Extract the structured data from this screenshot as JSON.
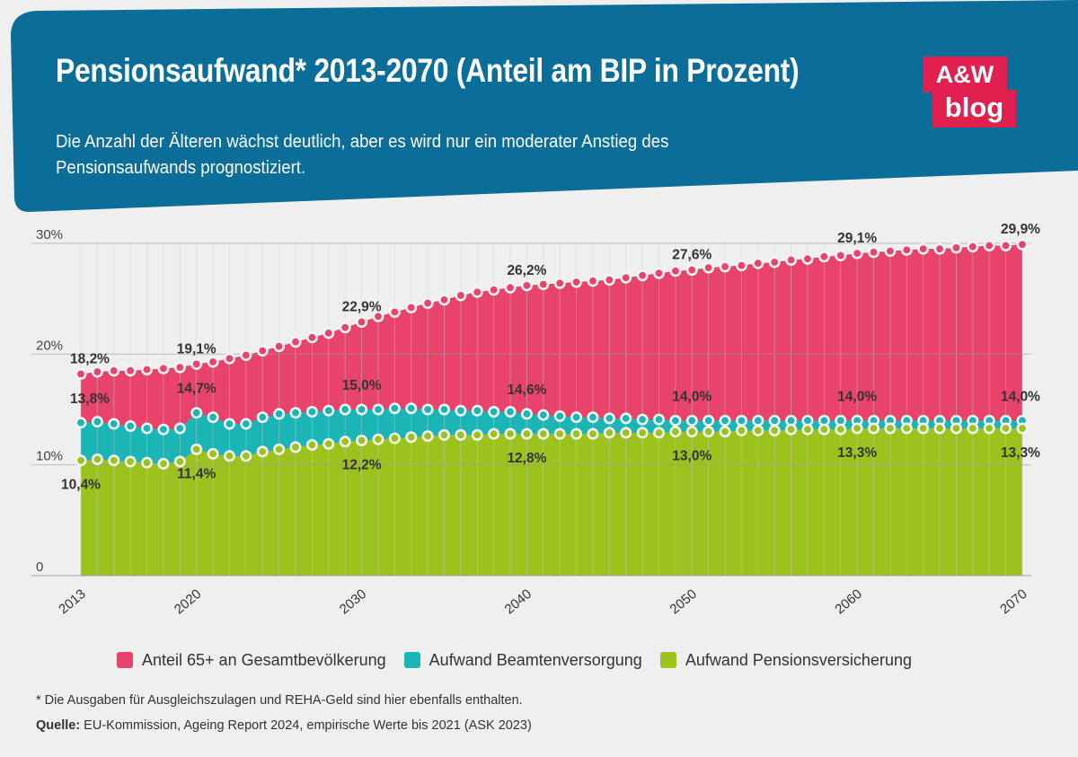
{
  "header": {
    "title": "Pensionsaufwand* 2013-2070 (Anteil am BIP in Prozent)",
    "subtitle": "Die Anzahl der Älteren wächst deutlich, aber es wird nur ein moderater Anstieg des Pensionsaufwands prognostiziert.",
    "logo_top": "A&W",
    "logo_bottom": "blog",
    "banner_color": "#0b6e99",
    "logo_color": "#e0204f"
  },
  "legend": {
    "items": [
      {
        "label": "Anteil 65+ an Gesamtbevölkerung",
        "color": "#e8436b"
      },
      {
        "label": "Aufwand Beamtenversorgung",
        "color": "#1bb5b5"
      },
      {
        "label": "Aufwand Pensionsversicherung",
        "color": "#9cc21e"
      }
    ]
  },
  "footer": {
    "footnote": "* Die Ausgaben für Ausgleichszulagen und REHA-Geld sind hier ebenfalls enthalten.",
    "source_label": "Quelle:",
    "source_text": " EU-Kommission, Ageing Report 2024, empirische Werte bis 2021 (ASK 2023)"
  },
  "chart_data": {
    "type": "area",
    "title": "Pensionsaufwand* 2013-2070 (Anteil am BIP in Prozent)",
    "xlabel": "",
    "ylabel": "",
    "x": [
      2013,
      2014,
      2015,
      2016,
      2017,
      2018,
      2019,
      2020,
      2021,
      2022,
      2023,
      2024,
      2025,
      2026,
      2027,
      2028,
      2029,
      2030,
      2031,
      2032,
      2033,
      2034,
      2035,
      2036,
      2037,
      2038,
      2039,
      2040,
      2041,
      2042,
      2043,
      2044,
      2045,
      2046,
      2047,
      2048,
      2049,
      2050,
      2051,
      2052,
      2053,
      2054,
      2055,
      2056,
      2057,
      2058,
      2059,
      2060,
      2061,
      2062,
      2063,
      2064,
      2065,
      2066,
      2067,
      2068,
      2069,
      2070
    ],
    "xlim": [
      2013,
      2070
    ],
    "ylim": [
      0,
      30
    ],
    "x_ticks": [
      2013,
      2020,
      2030,
      2040,
      2050,
      2060,
      2070
    ],
    "x_tick_labels": [
      "2013",
      "2020",
      "2030",
      "2040",
      "2050",
      "2060",
      "2070"
    ],
    "y_ticks": [
      0,
      10,
      20,
      30
    ],
    "y_tick_labels": [
      "0",
      "10%",
      "20%",
      "30%"
    ],
    "grid": "vertical lines every year, horizontal at 10/20/30",
    "series": [
      {
        "name": "Anteil 65+ an Gesamtbevölkerung",
        "color": "#e8436b",
        "values": [
          18.2,
          18.4,
          18.5,
          18.5,
          18.6,
          18.7,
          18.8,
          19.1,
          19.3,
          19.6,
          19.9,
          20.3,
          20.7,
          21.1,
          21.5,
          21.9,
          22.4,
          22.9,
          23.4,
          23.8,
          24.2,
          24.6,
          24.9,
          25.3,
          25.6,
          25.8,
          26.0,
          26.2,
          26.3,
          26.4,
          26.5,
          26.6,
          26.7,
          26.9,
          27.1,
          27.3,
          27.5,
          27.6,
          27.8,
          27.9,
          28.0,
          28.2,
          28.3,
          28.5,
          28.6,
          28.8,
          28.9,
          29.1,
          29.2,
          29.3,
          29.4,
          29.5,
          29.5,
          29.6,
          29.7,
          29.8,
          29.8,
          29.9
        ]
      },
      {
        "name": "Aufwand Beamtenversorgung",
        "color": "#1bb5b5",
        "values": [
          13.8,
          13.9,
          13.7,
          13.5,
          13.3,
          13.2,
          13.3,
          14.7,
          14.3,
          13.7,
          13.7,
          14.3,
          14.6,
          14.7,
          14.8,
          14.9,
          15.0,
          15.0,
          15.0,
          15.1,
          15.1,
          15.0,
          15.0,
          14.9,
          14.9,
          14.8,
          14.8,
          14.6,
          14.5,
          14.4,
          14.3,
          14.3,
          14.2,
          14.2,
          14.1,
          14.1,
          14.0,
          14.0,
          14.0,
          14.0,
          14.0,
          14.0,
          14.0,
          14.0,
          14.0,
          14.0,
          14.0,
          14.0,
          14.0,
          14.0,
          14.0,
          14.0,
          14.0,
          14.0,
          14.0,
          14.0,
          14.0,
          14.0
        ]
      },
      {
        "name": "Aufwand Pensionsversicherung",
        "color": "#9cc21e",
        "values": [
          10.4,
          10.5,
          10.4,
          10.3,
          10.2,
          10.1,
          10.3,
          11.4,
          11.0,
          10.8,
          10.8,
          11.2,
          11.4,
          11.6,
          11.8,
          11.9,
          12.1,
          12.2,
          12.3,
          12.4,
          12.5,
          12.6,
          12.7,
          12.7,
          12.7,
          12.8,
          12.8,
          12.8,
          12.8,
          12.8,
          12.8,
          12.8,
          12.9,
          12.9,
          12.9,
          12.9,
          13.0,
          13.0,
          13.0,
          13.0,
          13.1,
          13.1,
          13.1,
          13.2,
          13.2,
          13.2,
          13.2,
          13.3,
          13.3,
          13.3,
          13.3,
          13.3,
          13.3,
          13.3,
          13.3,
          13.3,
          13.3,
          13.3
        ]
      }
    ],
    "annotations": [
      {
        "series": 0,
        "x": 2013,
        "label": "18,2%"
      },
      {
        "series": 0,
        "x": 2020,
        "label": "19,1%"
      },
      {
        "series": 0,
        "x": 2030,
        "label": "22,9%"
      },
      {
        "series": 0,
        "x": 2040,
        "label": "26,2%"
      },
      {
        "series": 0,
        "x": 2050,
        "label": "27,6%"
      },
      {
        "series": 0,
        "x": 2060,
        "label": "29,1%"
      },
      {
        "series": 0,
        "x": 2070,
        "label": "29,9%"
      },
      {
        "series": 1,
        "x": 2013,
        "label": "13,8%"
      },
      {
        "series": 1,
        "x": 2020,
        "label": "14,7%"
      },
      {
        "series": 1,
        "x": 2030,
        "label": "15,0%"
      },
      {
        "series": 1,
        "x": 2040,
        "label": "14,6%"
      },
      {
        "series": 1,
        "x": 2050,
        "label": "14,0%"
      },
      {
        "series": 1,
        "x": 2060,
        "label": "14,0%"
      },
      {
        "series": 1,
        "x": 2070,
        "label": "14,0%"
      },
      {
        "series": 2,
        "x": 2013,
        "label": "10,4%"
      },
      {
        "series": 2,
        "x": 2020,
        "label": "11,4%"
      },
      {
        "series": 2,
        "x": 2030,
        "label": "12,2%"
      },
      {
        "series": 2,
        "x": 2040,
        "label": "12,8%"
      },
      {
        "series": 2,
        "x": 2050,
        "label": "13,0%"
      },
      {
        "series": 2,
        "x": 2060,
        "label": "13,3%"
      },
      {
        "series": 2,
        "x": 2070,
        "label": "13,3%"
      }
    ]
  }
}
